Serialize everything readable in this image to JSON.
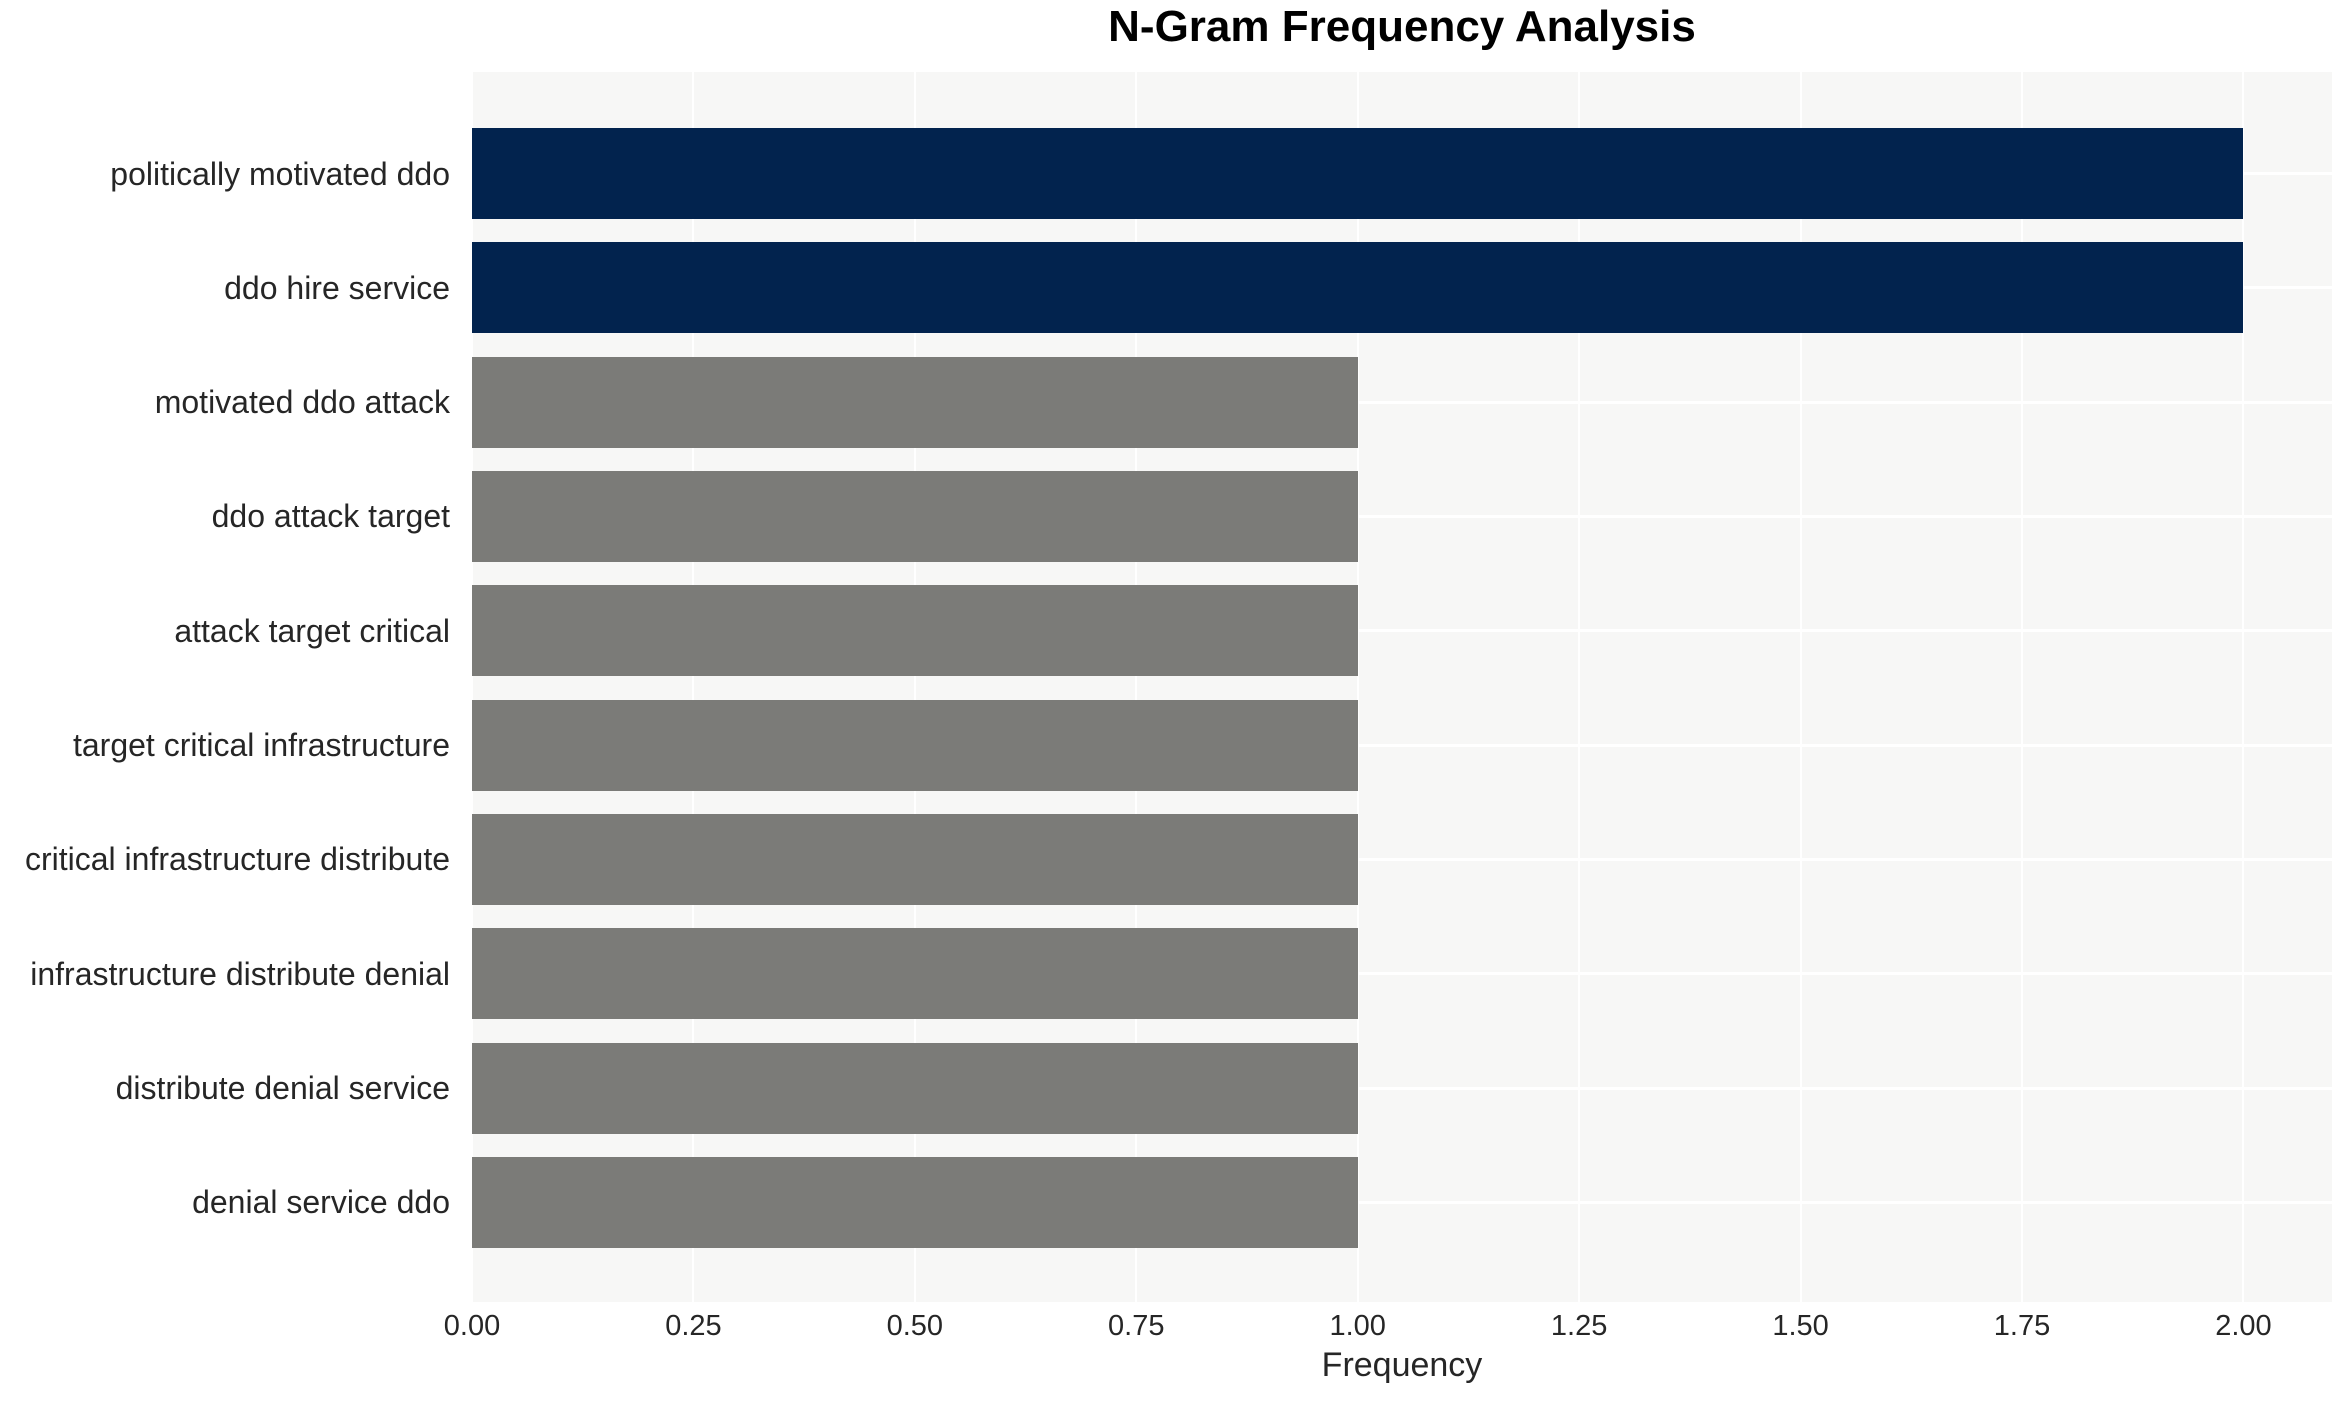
{
  "chart_data": {
    "type": "bar",
    "orientation": "horizontal",
    "title": "N-Gram Frequency Analysis",
    "xlabel": "Frequency",
    "ylabel": "",
    "categories": [
      "politically motivated ddo",
      "ddo hire service",
      "motivated ddo attack",
      "ddo attack target",
      "attack target critical",
      "target critical infrastructure",
      "critical infrastructure distribute",
      "infrastructure distribute denial",
      "distribute denial service",
      "denial service ddo"
    ],
    "values": [
      2,
      2,
      1,
      1,
      1,
      1,
      1,
      1,
      1,
      1
    ],
    "bar_colors": [
      "#02234E",
      "#02234E",
      "#7B7B78",
      "#7B7B78",
      "#7B7B78",
      "#7B7B78",
      "#7B7B78",
      "#7B7B78",
      "#7B7B78",
      "#7B7B78"
    ],
    "xticks": [
      "0.00",
      "0.25",
      "0.50",
      "0.75",
      "1.00",
      "1.25",
      "1.50",
      "1.75",
      "2.00"
    ],
    "xtick_values": [
      0,
      0.25,
      0.5,
      0.75,
      1.0,
      1.25,
      1.5,
      1.75,
      2.0
    ],
    "xlim": [
      0,
      2.1
    ],
    "grid": "on",
    "legend_position": "none",
    "colors": {
      "high_frequency_bar": "#02234E",
      "low_frequency_bar": "#7B7B78",
      "plot_background": "#F7F7F6",
      "grid_line": "#FFFFFF",
      "tick_text": "#262626",
      "title_text": "#000000"
    }
  }
}
